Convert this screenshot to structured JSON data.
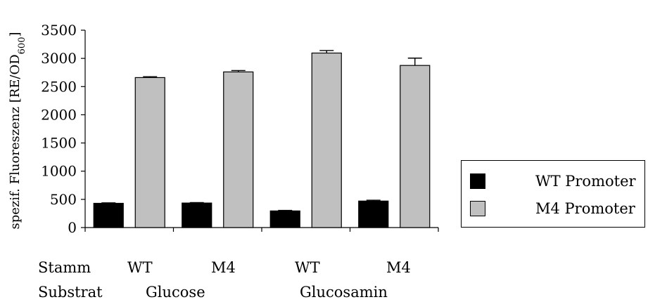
{
  "chart_data": {
    "type": "bar",
    "ylabel": "spezif. Fluoreszenz [RE/OD",
    "ylabel_sub": "600",
    "ylabel_end": "]",
    "ylim": [
      0,
      3500
    ],
    "yticks": [
      0,
      500,
      1000,
      1500,
      2000,
      2500,
      3000,
      3500
    ],
    "grid": false,
    "legend_position": "right",
    "categories": [
      "WT Glucose",
      "M4 Glucose",
      "WT Glucosamin",
      "M4 Glucosamin"
    ],
    "series": [
      {
        "name": "WT Promoter",
        "color": "#000000",
        "values": [
          430,
          435,
          295,
          470
        ],
        "errors": [
          8,
          8,
          10,
          15
        ]
      },
      {
        "name": "M4 Promoter",
        "color": "#c0c0c0",
        "values": [
          2660,
          2760,
          3095,
          2875
        ],
        "errors": [
          15,
          25,
          45,
          130
        ]
      }
    ]
  },
  "rows": {
    "stamm_label": "Stamm",
    "substrat_label": "Substrat",
    "stamm_values": [
      "WT",
      "M4",
      "WT",
      "M4"
    ],
    "substrat_values": [
      "Glucose",
      "Glucosamin"
    ]
  }
}
